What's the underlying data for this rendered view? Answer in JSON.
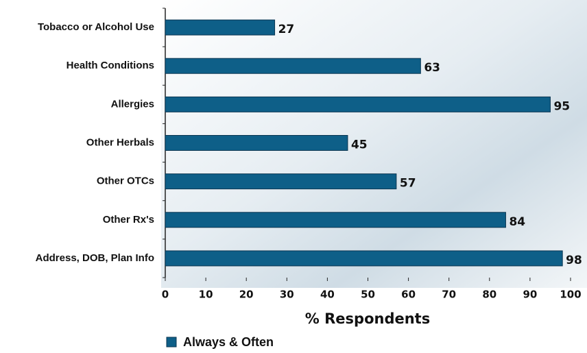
{
  "chart_data": {
    "type": "bar",
    "orientation": "horizontal",
    "categories": [
      "Tobacco or Alcohol Use",
      "Health Conditions",
      "Allergies",
      "Other Herbals",
      "Other OTCs",
      "Other Rx's",
      "Address, DOB, Plan Info"
    ],
    "series": [
      {
        "name": "Always & Often",
        "color": "#0e5f88",
        "values": [
          27,
          63,
          95,
          45,
          57,
          84,
          98
        ]
      }
    ],
    "x_label": "% Respondents",
    "xlim": [
      0,
      100
    ],
    "xticks": [
      0,
      10,
      20,
      30,
      40,
      50,
      60,
      70,
      80,
      90,
      100
    ]
  }
}
